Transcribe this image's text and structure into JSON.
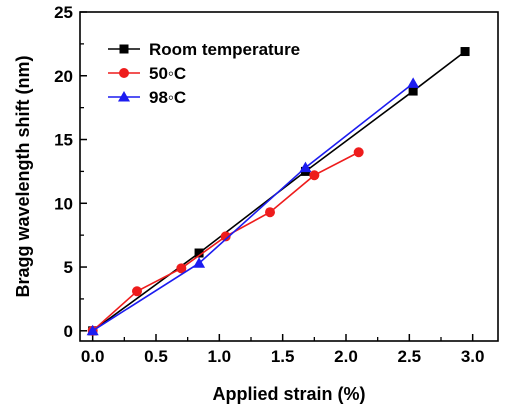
{
  "chart_data": {
    "type": "line",
    "title": "",
    "xlabel": "Applied strain (%)",
    "ylabel": "Bragg wavelength shift (nm)",
    "xlim": [
      -0.1,
      3.2
    ],
    "ylim": [
      -0.8,
      25
    ],
    "xticks": [
      0.0,
      0.5,
      1.0,
      1.5,
      2.0,
      2.5,
      3.0
    ],
    "xtick_labels": [
      "0.0",
      "0.5",
      "1.0",
      "1.5",
      "2.0",
      "2.5",
      "3.0"
    ],
    "yticks": [
      0,
      5,
      10,
      15,
      20,
      25
    ],
    "ytick_labels": [
      "0",
      "5",
      "10",
      "15",
      "20",
      "25"
    ],
    "grid": false,
    "legend_position": "top-left",
    "series": [
      {
        "name": "Room temperature",
        "color": "#000000",
        "marker": "square",
        "x": [
          0.0,
          0.84,
          1.68,
          2.53,
          2.94
        ],
        "y": [
          0.0,
          6.1,
          12.5,
          18.8,
          21.9
        ]
      },
      {
        "name": "50◦C",
        "color": "#ee1c1c",
        "marker": "circle",
        "x": [
          0.0,
          0.35,
          0.7,
          1.05,
          1.4,
          1.75,
          2.1
        ],
        "y": [
          0.0,
          3.1,
          4.9,
          7.4,
          9.3,
          12.2,
          14.0
        ]
      },
      {
        "name": "98◦C",
        "color": "#1c1cf0",
        "marker": "triangle",
        "x": [
          0.0,
          0.84,
          1.68,
          2.53
        ],
        "y": [
          0.0,
          5.3,
          12.8,
          19.4
        ]
      }
    ]
  }
}
